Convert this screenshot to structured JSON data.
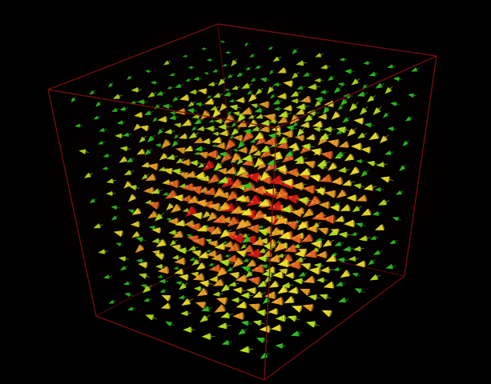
{
  "scene": {
    "type": "3d-vector-field",
    "background_color": "#000000",
    "bounding_box_color": "#7a0f12",
    "cone_palette": {
      "low": "#2fbf1f",
      "mid_low": "#b8e61e",
      "mid": "#f2e22a",
      "mid_high": "#f5a623",
      "high": "#f06a1e",
      "max": "#e01a12"
    },
    "grid_size": [
      9,
      9,
      9
    ]
  }
}
